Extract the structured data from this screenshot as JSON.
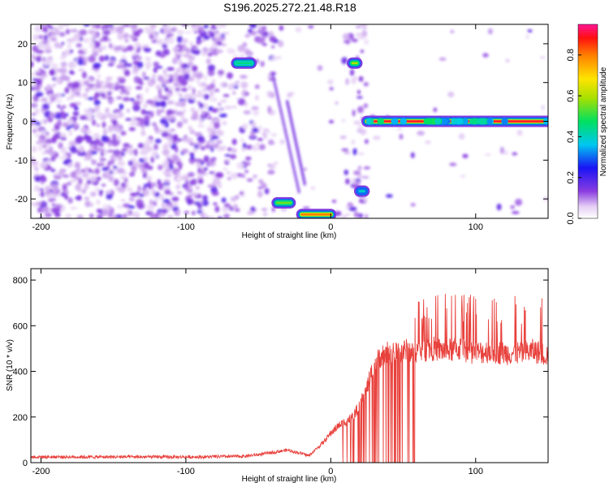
{
  "title": "S196.2025.272.21.48.R18",
  "chart_data": [
    {
      "type": "heatmap",
      "xlabel": "Height of straight line (km)",
      "ylabel": "Frequency (Hz)",
      "xlim": [
        -207,
        150
      ],
      "ylim": [
        -25,
        25
      ],
      "xticks": [
        -200,
        -100,
        0,
        100
      ],
      "yticks": [
        -20,
        -10,
        0,
        10,
        20
      ],
      "colorbar": {
        "label": "Normalized spectral amplitude",
        "range": [
          0,
          0.95
        ],
        "ticks": [
          "0.0",
          "0.2",
          "0.4",
          "0.6",
          "0.8"
        ]
      },
      "features": [
        {
          "x": [
            25,
            150
          ],
          "y": 0,
          "amplitude": 0.9
        },
        {
          "x": [
            -37,
            -28
          ],
          "y": -21,
          "amplitude": 0.55
        },
        {
          "x": [
            -20,
            0
          ],
          "y": -24,
          "amplitude": 0.8
        },
        {
          "x": [
            -65,
            -55
          ],
          "y": 15,
          "amplitude": 0.45
        },
        {
          "x": [
            15,
            18
          ],
          "y": 15,
          "amplitude": 0.6
        },
        {
          "x": [
            20,
            23
          ],
          "y": -18,
          "amplitude": 0.4
        }
      ]
    },
    {
      "type": "line",
      "xlabel": "Height of straight line (km)",
      "ylabel": "SNR (10 * v/v)",
      "xlim": [
        -207,
        150
      ],
      "ylim": [
        0,
        850
      ],
      "xticks": [
        -200,
        -100,
        0,
        100
      ],
      "yticks": [
        0,
        200,
        400,
        600,
        800
      ],
      "color": "#e8413c",
      "series": [
        {
          "x": [
            -207,
            -180,
            -150,
            -120,
            -90,
            -60,
            -50,
            -40,
            -30,
            -20,
            -15,
            -10,
            -5,
            0,
            5,
            10,
            15,
            20,
            25,
            30,
            35,
            40,
            50,
            60,
            70,
            80,
            90,
            100,
            110,
            120,
            130,
            140,
            150
          ],
          "y": [
            25,
            25,
            25,
            25,
            25,
            28,
            35,
            45,
            55,
            40,
            30,
            60,
            90,
            130,
            160,
            180,
            200,
            250,
            330,
            430,
            470,
            480,
            490,
            490,
            500,
            490,
            500,
            480,
            490,
            480,
            480,
            490,
            470
          ]
        }
      ]
    }
  ]
}
